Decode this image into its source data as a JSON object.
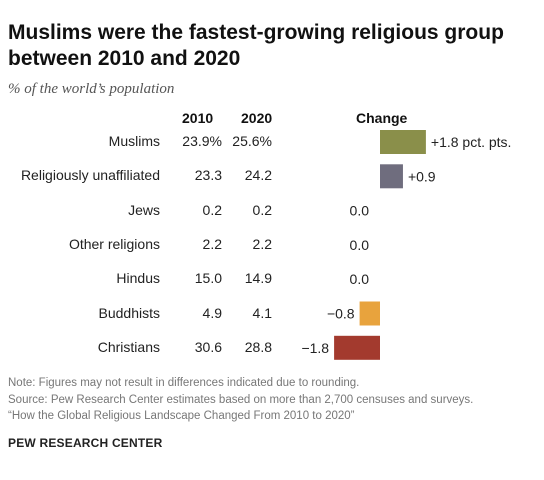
{
  "title": "Muslims were the fastest-growing religious group between 2010 and 2020",
  "subtitle": "% of the world’s population",
  "columns": {
    "y2010": "2010",
    "y2020": "2020",
    "change": "Change"
  },
  "colors": {
    "positive": "#8a8f4a",
    "unaffiliated": "#6f6d7e",
    "negative_small": "#e8a33d",
    "negative_large": "#a33a2e"
  },
  "chart_data": {
    "type": "bar",
    "orientation": "horizontal",
    "categories": [
      "Muslims",
      "Religiously unaffiliated",
      "Jews",
      "Other religions",
      "Hindus",
      "Buddhists",
      "Christians"
    ],
    "share_2010": [
      "23.9%",
      "23.3",
      "0.2",
      "2.2",
      "15.0",
      "4.9",
      "30.6"
    ],
    "share_2020": [
      "25.6%",
      "24.2",
      "0.2",
      "2.2",
      "14.9",
      "4.1",
      "28.8"
    ],
    "values": [
      1.8,
      0.9,
      0.0,
      0.0,
      0.0,
      -0.8,
      -1.8
    ],
    "value_labels": [
      "+1.8 pct. pts.",
      "+0.9",
      "0.0",
      "0.0",
      "0.0",
      "−0.8",
      "−1.8"
    ],
    "bar_colors": [
      "#8a8f4a",
      "#6f6d7e",
      "#6f6d7e",
      "#6f6d7e",
      "#6f6d7e",
      "#e8a33d",
      "#a33a2e"
    ]
  },
  "notes": {
    "note": "Note: Figures may not result in differences indicated due to rounding.",
    "source": "Source: Pew Research Center estimates based on more than 2,700 censuses and surveys.",
    "report": "“How the Global Religious Landscape Changed From 2010 to 2020”"
  },
  "brand": "PEW RESEARCH CENTER"
}
